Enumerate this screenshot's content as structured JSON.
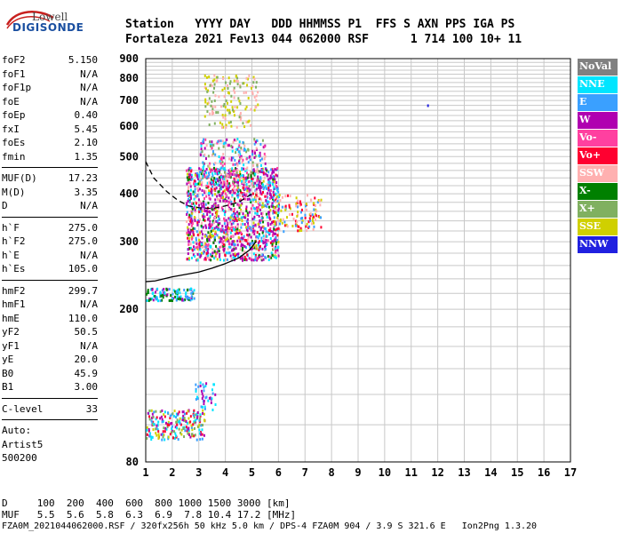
{
  "logo": {
    "top": "Lowell",
    "main": "DIGISONDE"
  },
  "header": {
    "line1": "Station   YYYY DAY   DDD HHMMSS P1  FFS S AXN PPS IGA PS",
    "line2": "Fortaleza 2021 Fev13 044 062000 RSF      1 714 100 10+ 11"
  },
  "params": {
    "group1": [
      {
        "label": "foF2",
        "value": "5.150"
      },
      {
        "label": "foF1",
        "value": "N/A"
      },
      {
        "label": "foF1p",
        "value": "N/A"
      },
      {
        "label": "foE",
        "value": "N/A"
      },
      {
        "label": "foEp",
        "value": "0.40"
      },
      {
        "label": "fxI",
        "value": "5.45"
      },
      {
        "label": "foEs",
        "value": "2.10"
      },
      {
        "label": "fmin",
        "value": "1.35"
      }
    ],
    "group2": [
      {
        "label": "MUF(D)",
        "value": "17.23"
      },
      {
        "label": "M(D)",
        "value": "3.35"
      },
      {
        "label": "D",
        "value": "N/A"
      }
    ],
    "group3": [
      {
        "label": "h`F",
        "value": "275.0"
      },
      {
        "label": "h`F2",
        "value": "275.0"
      },
      {
        "label": "h`E",
        "value": "N/A"
      },
      {
        "label": "h`Es",
        "value": "105.0"
      }
    ],
    "group4": [
      {
        "label": "hmF2",
        "value": "299.7"
      },
      {
        "label": "hmF1",
        "value": "N/A"
      },
      {
        "label": "hmE",
        "value": "110.0"
      },
      {
        "label": "yF2",
        "value": "50.5"
      },
      {
        "label": "yF1",
        "value": "N/A"
      },
      {
        "label": "yE",
        "value": "20.0"
      },
      {
        "label": "B0",
        "value": "45.9"
      },
      {
        "label": "B1",
        "value": "3.00"
      }
    ],
    "group5": [
      {
        "label": "C-level",
        "value": "33"
      }
    ],
    "auto": [
      "Auto:",
      "Artist5",
      "500200"
    ]
  },
  "legend": [
    {
      "label": "NoVal",
      "color": "#808080"
    },
    {
      "label": "NNE",
      "color": "#00e5ff"
    },
    {
      "label": "E",
      "color": "#3aa0ff"
    },
    {
      "label": "W",
      "color": "#b000b0"
    },
    {
      "label": "Vo-",
      "color": "#ff40a0"
    },
    {
      "label": "Vo+",
      "color": "#ff0030"
    },
    {
      "label": "SSW",
      "color": "#ffb0b0"
    },
    {
      "label": "X-",
      "color": "#008000"
    },
    {
      "label": "X+",
      "color": "#80b060"
    },
    {
      "label": "SSE",
      "color": "#d0d000"
    },
    {
      "label": "NNW",
      "color": "#2020e0"
    }
  ],
  "footer": {
    "d_row": "D     100  200  400  600  800 1000 1500 3000 [km]",
    "muf_row": "MUF   5.5  5.6  5.8  6.3  6.9  7.8 10.4 17.2 [MHz]",
    "file_row": "FZA0M_2021044062000.RSF / 320fx256h 50 kHz 5.0 km / DPS-4 FZA0M 904 / 3.9 S 321.6 E   Ion2Png 1.3.20"
  },
  "chart_data": {
    "type": "scatter",
    "xlabel": "",
    "ylabel": "",
    "xlim": [
      1,
      17
    ],
    "ylim": [
      80,
      900
    ],
    "x_ticks": [
      1,
      2,
      3,
      4,
      5,
      6,
      7,
      8,
      9,
      10,
      11,
      12,
      13,
      14,
      15,
      16,
      17
    ],
    "y_ticks": [
      80,
      200,
      300,
      400,
      500,
      600,
      700,
      800,
      900
    ],
    "y_scale": "log",
    "grid": true,
    "legend_position": "right",
    "clusters": [
      {
        "name": "Es layer",
        "freq": [
          1.0,
          3.2
        ],
        "height": [
          92,
          110
        ],
        "colors": [
          "E",
          "NNE",
          "W",
          "SSE",
          "Vo+",
          "X+"
        ],
        "n": 220
      },
      {
        "name": "Es flag",
        "freq": [
          2.8,
          3.6
        ],
        "height": [
          110,
          130
        ],
        "colors": [
          "NNE",
          "E",
          "W"
        ],
        "n": 40
      },
      {
        "name": "low trace",
        "freq": [
          1.0,
          2.8
        ],
        "height": [
          212,
          228
        ],
        "colors": [
          "E",
          "NNE",
          "W",
          "X-"
        ],
        "n": 120
      },
      {
        "name": "F trace",
        "freq": [
          2.5,
          6.0
        ],
        "height": [
          270,
          470
        ],
        "colors": [
          "W",
          "W",
          "W",
          "E",
          "Vo-",
          "Vo+",
          "SSW",
          "SSE",
          "X-",
          "NNE"
        ],
        "n": 1400
      },
      {
        "name": "F upper",
        "freq": [
          3.0,
          5.5
        ],
        "height": [
          420,
          560
        ],
        "colors": [
          "SSW",
          "NNE",
          "E",
          "W",
          "X+",
          "Vo-"
        ],
        "n": 260
      },
      {
        "name": "F right",
        "freq": [
          5.8,
          7.6
        ],
        "height": [
          320,
          400
        ],
        "colors": [
          "SSE",
          "SSW",
          "Vo+",
          "E"
        ],
        "n": 120
      },
      {
        "name": "oblique high",
        "freq": [
          3.2,
          5.2
        ],
        "height": [
          600,
          820
        ],
        "colors": [
          "SSE",
          "SSW",
          "X+"
        ],
        "n": 150
      }
    ],
    "isolated_points": [
      {
        "freq": 11.6,
        "height": 684,
        "color": "NNW"
      }
    ],
    "profile_solid": {
      "freq": [
        1.0,
        1.35,
        2.0,
        3.0,
        3.5,
        4.0,
        4.5,
        4.9,
        5.15
      ],
      "height": [
        236,
        237,
        243,
        250,
        256,
        263,
        272,
        285,
        300
      ]
    },
    "profile_dashed": {
      "freq": [
        1.0,
        1.3,
        1.8,
        2.2,
        2.6,
        3.0,
        3.5,
        4.0,
        4.5,
        5.0
      ],
      "height": [
        485,
        440,
        405,
        385,
        372,
        368,
        366,
        372,
        380,
        400
      ]
    }
  }
}
